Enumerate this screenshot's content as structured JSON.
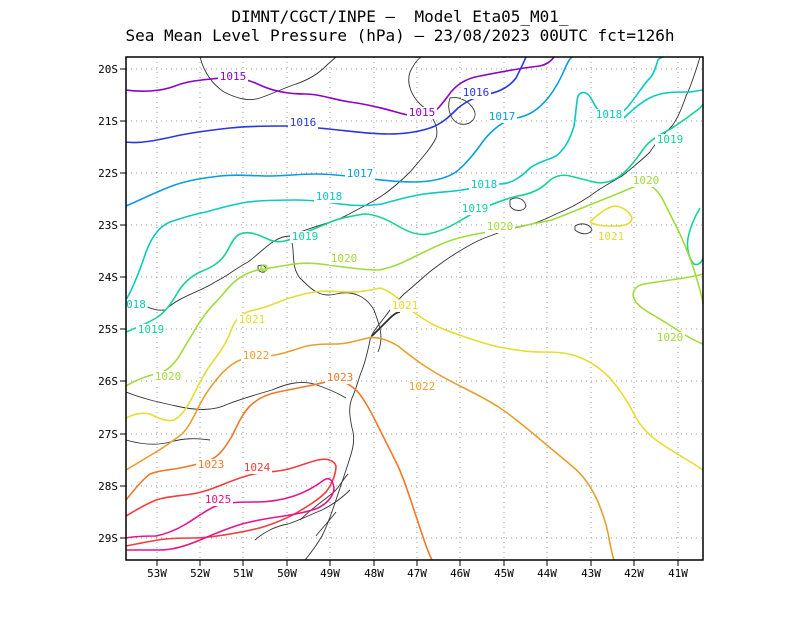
{
  "header": {
    "line1": "DIMNT/CGCT/INPE —  Model Eta05_M01_",
    "line2": "Sea Mean Level Pressure (hPa) — 23/08/2023 00UTC fct=126h"
  },
  "axes": {
    "x_ticks": [
      "53W",
      "52W",
      "51W",
      "50W",
      "49W",
      "48W",
      "47W",
      "46W",
      "45W",
      "44W",
      "43W",
      "42W",
      "41W"
    ],
    "y_ticks": [
      "20S",
      "21S",
      "22S",
      "23S",
      "24S",
      "25S",
      "26S",
      "27S",
      "28S",
      "29S"
    ]
  },
  "colors": {
    "c1015": "#8c00c8",
    "c1016": "#2a36e0",
    "c1017": "#0a9be0",
    "c1018": "#0bc9c0",
    "c1019": "#14d29a",
    "c1020": "#a0dc3c",
    "c1021": "#e6dc32",
    "c1022": "#e6a030",
    "c1023": "#f07828",
    "c1024": "#f03c3c",
    "c1025": "#e6148c"
  },
  "contour_labels": [
    {
      "text": "1015",
      "color": "#8c00c8"
    },
    {
      "text": "1015",
      "color": "#8c00c8"
    },
    {
      "text": "1016",
      "color": "#2a36e0"
    },
    {
      "text": "1016",
      "color": "#2a36e0"
    },
    {
      "text": "1017",
      "color": "#0a9be0"
    },
    {
      "text": "1017",
      "color": "#0a9be0"
    },
    {
      "text": "1018",
      "color": "#0bc9c0"
    },
    {
      "text": "1018",
      "color": "#0bc9c0"
    },
    {
      "text": "1018",
      "color": "#0bc9c0"
    },
    {
      "text": "018",
      "color": "#0bc9c0"
    },
    {
      "text": "1019",
      "color": "#14d29a"
    },
    {
      "text": "1019",
      "color": "#14d29a"
    },
    {
      "text": "1019",
      "color": "#14d29a"
    },
    {
      "text": "1019",
      "color": "#14d29a"
    },
    {
      "text": "1020",
      "color": "#a0dc3c"
    },
    {
      "text": "1020",
      "color": "#a0dc3c"
    },
    {
      "text": "1020",
      "color": "#a0dc3c"
    },
    {
      "text": "1020",
      "color": "#a0dc3c"
    },
    {
      "text": "1020",
      "color": "#a0dc3c"
    },
    {
      "text": "1021",
      "color": "#e6dc32"
    },
    {
      "text": "1021",
      "color": "#e6dc32"
    },
    {
      "text": "1021",
      "color": "#e6dc32"
    },
    {
      "text": "1022",
      "color": "#e6a030"
    },
    {
      "text": "1022",
      "color": "#e6a030"
    },
    {
      "text": "1023",
      "color": "#f07828"
    },
    {
      "text": "1023",
      "color": "#f07828"
    },
    {
      "text": "1024",
      "color": "#f03c3c"
    },
    {
      "text": "1025",
      "color": "#e6148c"
    }
  ]
}
